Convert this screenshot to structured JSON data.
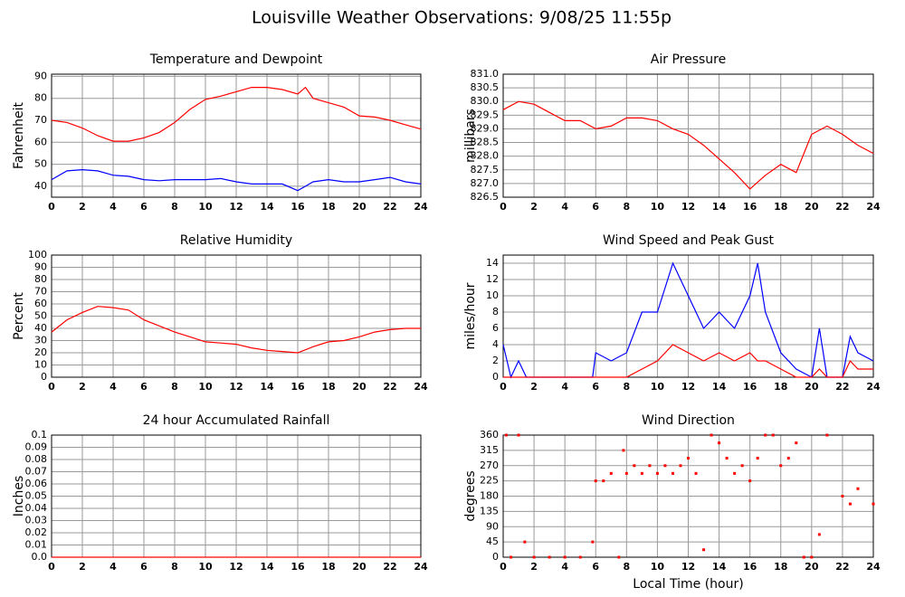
{
  "title": "Louisville Weather Observations: 9/08/25 11:55p",
  "chart_data": [
    {
      "type": "line",
      "title": "Temperature and Dewpoint",
      "ylabel": "Fahrenheit",
      "x": [
        0,
        1,
        2,
        3,
        4,
        5,
        6,
        7,
        8,
        9,
        10,
        11,
        12,
        13,
        14,
        15,
        16,
        16.5,
        17,
        18,
        19,
        20,
        21,
        22,
        23,
        24
      ],
      "series": [
        {
          "color": "#ff0000",
          "values": [
            70,
            69,
            66.5,
            63,
            60.5,
            60.5,
            62,
            64.5,
            69,
            75,
            79.5,
            81,
            83,
            85,
            85,
            84,
            82,
            85,
            80,
            78,
            76,
            72,
            71.5,
            70,
            68,
            66
          ]
        },
        {
          "color": "#0000ff",
          "values": [
            43,
            47,
            47.5,
            47,
            45,
            44.5,
            43,
            42.5,
            43,
            43,
            43,
            43.5,
            42,
            41,
            41,
            41,
            38,
            40,
            42,
            43,
            42,
            42,
            43,
            44,
            42,
            41
          ]
        }
      ],
      "xlim": [
        0,
        24
      ],
      "xticks": [
        0,
        2,
        4,
        6,
        8,
        10,
        12,
        14,
        16,
        18,
        20,
        22,
        24
      ],
      "ylim": [
        35,
        91
      ],
      "yticks": [
        40,
        50,
        60,
        70,
        80,
        90
      ],
      "grid": true
    },
    {
      "type": "line",
      "title": "Air Pressure",
      "ylabel": "millibars",
      "x": [
        0,
        1,
        2,
        3,
        4,
        5,
        6,
        7,
        8,
        9,
        10,
        11,
        12,
        13,
        14,
        15,
        16,
        17,
        18,
        19,
        20,
        21,
        22,
        23,
        24
      ],
      "series": [
        {
          "color": "#ff0000",
          "values": [
            829.7,
            830.0,
            829.9,
            829.6,
            829.3,
            829.3,
            829.0,
            829.1,
            829.4,
            829.4,
            829.3,
            829.0,
            828.8,
            828.4,
            827.9,
            827.4,
            826.8,
            827.3,
            827.7,
            827.4,
            828.8,
            829.1,
            828.8,
            828.4,
            828.1
          ]
        }
      ],
      "xlim": [
        0,
        24
      ],
      "xticks": [
        0,
        2,
        4,
        6,
        8,
        10,
        12,
        14,
        16,
        18,
        20,
        22,
        24
      ],
      "ylim": [
        826.5,
        831
      ],
      "yticks": [
        826.5,
        {
          "value": 827,
          "label": "827.0"
        },
        827.5,
        {
          "value": 828,
          "label": "828.0"
        },
        828.5,
        {
          "value": 829,
          "label": "829.0"
        },
        829.5,
        {
          "value": 830,
          "label": "830.0"
        },
        830.5,
        {
          "value": 831,
          "label": "831.0"
        }
      ],
      "grid": true
    },
    {
      "type": "line",
      "title": "Relative Humidity",
      "ylabel": "Percent",
      "x": [
        0,
        1,
        2,
        3,
        4,
        5,
        6,
        7,
        8,
        9,
        10,
        11,
        12,
        13,
        14,
        15,
        16,
        17,
        18,
        19,
        20,
        21,
        22,
        23,
        24
      ],
      "series": [
        {
          "color": "#ff0000",
          "values": [
            37,
            47,
            53,
            58,
            57,
            55,
            47,
            42,
            37,
            33,
            29,
            28,
            27,
            24,
            22,
            21,
            20,
            25,
            29,
            30,
            33,
            37,
            39,
            40,
            40
          ]
        }
      ],
      "xlim": [
        0,
        24
      ],
      "xticks": [
        0,
        2,
        4,
        6,
        8,
        10,
        12,
        14,
        16,
        18,
        20,
        22,
        24
      ],
      "ylim": [
        0,
        100
      ],
      "yticks": [
        0,
        10,
        20,
        30,
        40,
        50,
        60,
        70,
        80,
        90,
        100
      ],
      "grid": true
    },
    {
      "type": "line",
      "title": "Wind Speed and Peak Gust",
      "ylabel": "miles/hour",
      "x": [
        0,
        0.5,
        1,
        1.5,
        2,
        3,
        4,
        5,
        5.8,
        6,
        7,
        8,
        9,
        10,
        11,
        12,
        13,
        14,
        15,
        16,
        16.5,
        17,
        18,
        19,
        20,
        20.5,
        21,
        22,
        22.5,
        23,
        24
      ],
      "series": [
        {
          "color": "#0000ff",
          "values": [
            4,
            0,
            2,
            0,
            0,
            0,
            0,
            0,
            0,
            3,
            2,
            3,
            8,
            8,
            14,
            10,
            6,
            8,
            6,
            10,
            14,
            8,
            3,
            1,
            0,
            6,
            0,
            0,
            5,
            3,
            2
          ]
        },
        {
          "color": "#ff0000",
          "values": [
            0,
            0,
            0,
            0,
            0,
            0,
            0,
            0,
            0,
            0,
            0,
            0,
            1,
            2,
            4,
            3,
            2,
            3,
            2,
            3,
            2,
            2,
            1,
            0,
            0,
            1,
            0,
            0,
            2,
            1,
            1
          ]
        }
      ],
      "xlim": [
        0,
        24
      ],
      "xticks": [
        0,
        2,
        4,
        6,
        8,
        10,
        12,
        14,
        16,
        18,
        20,
        22,
        24
      ],
      "ylim": [
        0,
        15
      ],
      "yticks": [
        0,
        2,
        4,
        6,
        8,
        10,
        12,
        14
      ],
      "grid": true
    },
    {
      "type": "line",
      "title": "24 hour Accumulated Rainfall",
      "ylabel": "Inches",
      "x": [
        0,
        24
      ],
      "series": [
        {
          "color": "#ff0000",
          "values": [
            0,
            0
          ]
        }
      ],
      "xlim": [
        0,
        24
      ],
      "xticks": [
        0,
        2,
        4,
        6,
        8,
        10,
        12,
        14,
        16,
        18,
        20,
        22,
        24
      ],
      "ylim": [
        0,
        0.1
      ],
      "yticks": [
        {
          "value": 0,
          "label": "0.0"
        },
        0.01,
        0.02,
        0.03,
        0.04,
        0.05,
        0.06,
        0.07,
        0.08,
        0.09,
        0.1
      ],
      "grid": true
    },
    {
      "type": "scatter",
      "title": "Wind Direction",
      "ylabel": "degrees",
      "xlabel": "Local Time (hour)",
      "x": [
        0.2,
        0.5,
        1,
        1.4,
        2,
        3,
        4,
        5,
        5.8,
        6,
        6.5,
        7,
        7.5,
        7.8,
        8,
        8.5,
        9,
        9.5,
        10,
        10.5,
        11,
        11.5,
        12,
        12.5,
        13,
        13.5,
        14,
        14.5,
        15,
        15.5,
        16,
        16.5,
        17,
        17.5,
        18,
        18.5,
        19,
        19.5,
        20,
        20.5,
        21,
        22,
        22.5,
        23,
        24
      ],
      "values": [
        360,
        0,
        360,
        45,
        0,
        0,
        0,
        0,
        45,
        225,
        225,
        247,
        0,
        315,
        247,
        270,
        247,
        270,
        247,
        270,
        247,
        270,
        292,
        247,
        22,
        360,
        337,
        292,
        247,
        270,
        225,
        292,
        360,
        360,
        270,
        292,
        337,
        0,
        0,
        67,
        360,
        180,
        157,
        202,
        157
      ],
      "color": "#ff0000",
      "xlim": [
        0,
        24
      ],
      "xticks": [
        0,
        2,
        4,
        6,
        8,
        10,
        12,
        14,
        16,
        18,
        20,
        22,
        24
      ],
      "ylim": [
        0,
        360
      ],
      "yticks": [
        0,
        45,
        90,
        135,
        180,
        225,
        270,
        315,
        360
      ],
      "grid": true
    }
  ]
}
